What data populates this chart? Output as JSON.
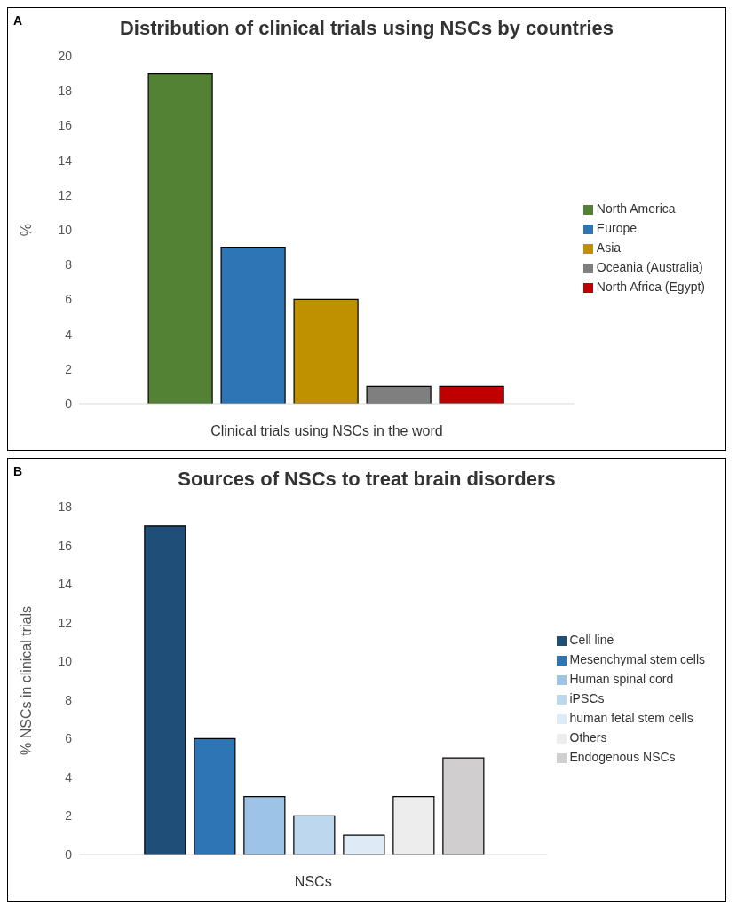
{
  "chart_data": [
    {
      "type": "bar",
      "title": "Distribution of clinical trials using NSCs by countries",
      "xlabel": "Clinical trials using NSCs in the word",
      "ylabel": "%",
      "annotations": [
        "A"
      ],
      "categories": [
        null
      ],
      "series": [
        {
          "name": "North America",
          "color": "#548235",
          "values": [
            19
          ]
        },
        {
          "name": "Europe",
          "color": "#2e75b6",
          "values": [
            9
          ]
        },
        {
          "name": "Asia",
          "color": "#bf9000",
          "values": [
            6
          ]
        },
        {
          "name": "Oceania (Australia)",
          "color": "#7f7f7f",
          "values": [
            1
          ]
        },
        {
          "name": "North Africa (Egypt)",
          "color": "#c00000",
          "values": [
            1
          ]
        }
      ],
      "ylim": [
        0,
        20
      ],
      "yticks": [
        0,
        2,
        4,
        6,
        8,
        10,
        12,
        14,
        16,
        18,
        20
      ],
      "grid": false,
      "legend": "right"
    },
    {
      "type": "bar",
      "title": "Sources of NSCs to treat brain disorders",
      "xlabel": "NSCs",
      "ylabel": "% NSCs in clinical trials",
      "annotations": [
        "B"
      ],
      "categories": [
        null
      ],
      "series": [
        {
          "name": "Cell line",
          "color": "#1f4e79",
          "values": [
            17
          ]
        },
        {
          "name": "Mesenchymal stem cells",
          "color": "#2e75b6",
          "values": [
            6
          ]
        },
        {
          "name": "Human spinal cord",
          "color": "#9dc3e6",
          "values": [
            3
          ]
        },
        {
          "name": "iPSCs",
          "color": "#bdd7ee",
          "values": [
            2
          ]
        },
        {
          "name": "human fetal stem cells",
          "color": "#deebf7",
          "values": [
            1
          ]
        },
        {
          "name": "Others",
          "color": "#ededed",
          "values": [
            3
          ]
        },
        {
          "name": "Endogenous NSCs",
          "color": "#d0cece",
          "values": [
            5
          ]
        }
      ],
      "ylim": [
        0,
        18
      ],
      "yticks": [
        0,
        2,
        4,
        6,
        8,
        10,
        12,
        14,
        16,
        18
      ],
      "grid": false,
      "legend": "right"
    }
  ]
}
